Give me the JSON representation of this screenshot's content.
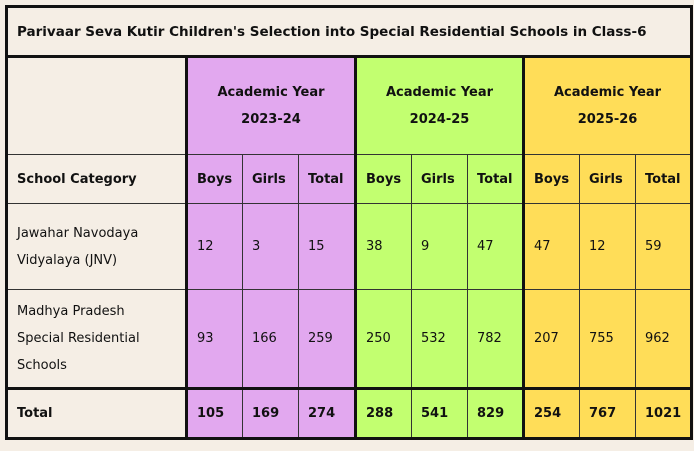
{
  "title": "Parivaar Seva Kutir Children's Selection into Special Residential Schools in Class-6",
  "years": [
    {
      "line1": "Academic Year",
      "line2": "2023-24",
      "color": "#e2a8ef"
    },
    {
      "line1": "Academic Year",
      "line2": "2024-25",
      "color": "#c2ff70"
    },
    {
      "line1": "Academic Year",
      "line2": "2025-26",
      "color": "#ffdd58"
    }
  ],
  "category_header": "School Category",
  "sub_headers": [
    "Boys",
    "Girls",
    "Total"
  ],
  "rows": [
    {
      "category": [
        "Jawahar Navodaya",
        "Vidyalaya (JNV)"
      ],
      "values": [
        "12",
        "3",
        "15",
        "38",
        "9",
        "47",
        "47",
        "12",
        "59"
      ]
    },
    {
      "category": [
        "Madhya Pradesh",
        "Special Residential",
        "Schools"
      ],
      "values": [
        "93",
        "166",
        "259",
        "250",
        "532",
        "782",
        "207",
        "755",
        "962"
      ]
    }
  ],
  "total": {
    "label": "Total",
    "values": [
      "105",
      "169",
      "274",
      "288",
      "541",
      "829",
      "254",
      "767",
      "1021"
    ]
  }
}
